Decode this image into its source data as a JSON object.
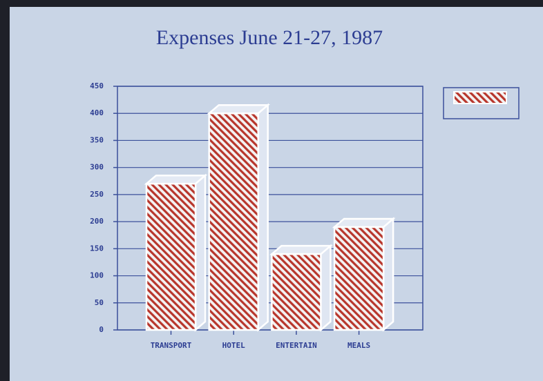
{
  "chart_data": {
    "type": "bar",
    "title": "Expenses June 21-27, 1987",
    "categories": [
      "TRANSPORT",
      "HOTEL",
      "ENTERTAIN",
      "MEALS"
    ],
    "values": [
      270,
      400,
      140,
      190
    ],
    "color": "#b8362c",
    "ylim": [
      0,
      450
    ],
    "yticks": [
      0,
      50,
      100,
      150,
      200,
      250,
      300,
      350,
      400,
      450
    ],
    "grid": true,
    "legend": "right"
  }
}
